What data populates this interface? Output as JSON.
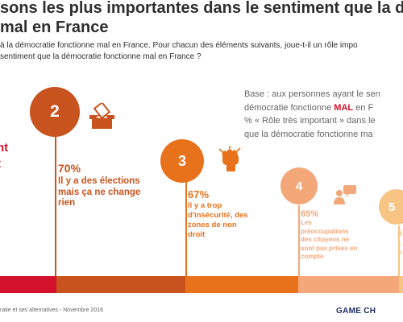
{
  "header": {
    "title_line1": "sons les plus importantes dans le sentiment que la dé",
    "title_line2": "mal en France",
    "subtitle_line1": "à la démocratie fonctionne mal en France. Pour chacun des éléments suivants, joue-t-il un rôle impo",
    "subtitle_line2": "sentiment que la démocratie fonctionne mal en France ?"
  },
  "base_note": {
    "line1": "Base : aux personnes ayant le sen",
    "line2_before": "démocratie fonctionne ",
    "line2_highlight": "MAL",
    "line2_after": " en F",
    "line3": "% « Rôle très important » dans le",
    "line4": "que la démocratie fonctionne ma"
  },
  "cut_label": {
    "line1": "nt",
    "line2": "t"
  },
  "steps": [
    {
      "number": "2",
      "percent": "70%",
      "text": [
        "Il y a des élections",
        "mais ça ne change",
        "rien"
      ],
      "icon": "ballot-box-icon",
      "color": "#c9531f"
    },
    {
      "number": "3",
      "percent": "67%",
      "text": [
        "Il y a trop",
        "d'insécurité, des",
        "zones de non",
        "droit"
      ],
      "icon": "fist-icon",
      "color": "#e8721c"
    },
    {
      "number": "4",
      "percent": "65%",
      "text": [
        "Les",
        "préoccupations",
        "des citoyens ne",
        "sont pas prises en",
        "compte"
      ],
      "icon": "speech-person-icon",
      "color": "#f4a87a"
    },
    {
      "number": "5",
      "percent": "6",
      "text": [
        "L",
        "b"
      ],
      "icon": "",
      "color": "#f7c483"
    }
  ],
  "footer": {
    "source": "ratie et ses alternatives - Novembre 2016",
    "brand": "GAME CH"
  },
  "colors": {
    "red": "#d3112c",
    "dark_orange": "#c9531f",
    "orange": "#e8721c",
    "light_orange": "#f4a87a",
    "peach": "#f7c483",
    "brand_navy": "#1c2f63"
  }
}
